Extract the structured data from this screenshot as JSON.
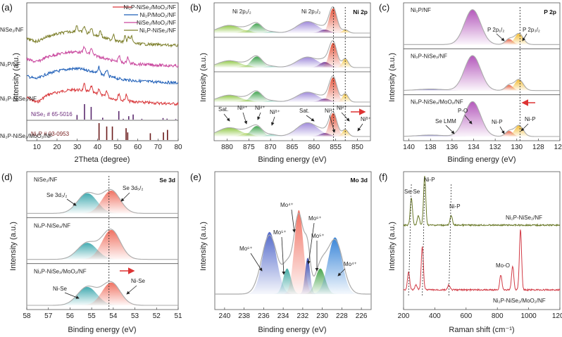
{
  "chart_data": [
    {
      "panel": "(a)",
      "type": "line",
      "title": "",
      "xlabel": "2Theta (degree)",
      "ylabel": "Intensity (a.u.)",
      "xlim": [
        5,
        80
      ],
      "xticks": [
        10,
        20,
        30,
        40,
        50,
        60,
        70,
        80
      ],
      "legend_position": "top-right",
      "series": [
        {
          "name": "Ni2P-NiSe2/MoO2/NF",
          "color": "#d9393c",
          "offset": 0,
          "peaks": [
            33.5,
            37,
            40.8,
            44.6,
            50.7,
            54.3
          ]
        },
        {
          "name": "Ni2P/MoO2/NF",
          "color": "#1f5fb8",
          "offset": 1,
          "peaks": [
            40.8,
            44.6
          ]
        },
        {
          "name": "NiSe2/MoO2/NF",
          "color": "#c9479e",
          "offset": 2,
          "peaks": [
            33.5,
            37,
            50.7,
            55
          ]
        },
        {
          "name": "Ni2P-NiSe2/NF",
          "color": "#7d7f2b",
          "offset": 3,
          "peaks": [
            29.8,
            33.5,
            37,
            41.5,
            48,
            53.7,
            55.5,
            57
          ]
        }
      ],
      "legend": [
        {
          "label": "Ni2P-NiSe2/MoO2/NF",
          "color": "#d9393c"
        },
        {
          "label": "Ni2P/MoO2/NF",
          "color": "#1f5fb8"
        },
        {
          "label": "NiSe2/MoO2/NF",
          "color": "#c9479e"
        },
        {
          "label": "Ni2P-NiSe2/NF",
          "color": "#7d7f2b"
        }
      ],
      "references": [
        {
          "label": "NiSe2 # 65-5016",
          "color": "#5b2a6e",
          "lines": [
            [
              29.9,
              0.3
            ],
            [
              33.6,
              1.0
            ],
            [
              36.9,
              0.82
            ],
            [
              42.6,
              0.12
            ],
            [
              50.6,
              0.55
            ],
            [
              52.8,
              0.05
            ],
            [
              55.5,
              0.22
            ],
            [
              57.7,
              0.33
            ],
            [
              62,
              0.05
            ],
            [
              72.5,
              0.1
            ],
            [
              74.5,
              0.06
            ],
            [
              78.8,
              0.04
            ]
          ]
        },
        {
          "label": "Ni2P # 03-0953",
          "color": "#6b1b1b",
          "lines": [
            [
              40.8,
              1.0
            ],
            [
              44.6,
              0.8
            ],
            [
              47.4,
              0.8
            ],
            [
              54.2,
              0.7
            ],
            [
              55,
              0.45
            ],
            [
              66.2,
              0.4
            ],
            [
              72.7,
              0.45
            ],
            [
              74.7,
              0.6
            ]
          ]
        }
      ]
    },
    {
      "panel": "(b)",
      "type": "area",
      "title": "Ni 2p",
      "xlabel": "Binding energy (eV)",
      "ylabel": "Intensity (a.u.)",
      "xlim": [
        883,
        847
      ],
      "xticks": [
        880,
        875,
        870,
        865,
        860,
        855,
        850
      ],
      "dashed_lines": [
        855.5,
        852.8
      ],
      "samples": [
        "NiSe2/NF",
        "Ni2P/NF",
        "Ni2P-NiSe2/NF",
        "Ni2P-NiSe2/MoO2/NF"
      ],
      "component_peaks": [
        {
          "label": "Sat.",
          "center": 879.5,
          "color": "#8cc63f"
        },
        {
          "label": "Ni3+",
          "center": 875.5,
          "color": "#b5d56a"
        },
        {
          "label": "Ni2+",
          "center": 873.2,
          "color": "#3ca04a"
        },
        {
          "label": "Niδ+",
          "center": 869.8,
          "color": "#7fc7b6"
        },
        {
          "label": "Sat.",
          "center": 861.5,
          "color": "#9a84d8"
        },
        {
          "label": "Ni3+",
          "center": 857.5,
          "color": "#6b2a8c"
        },
        {
          "label": "Ni2+",
          "center": 855.6,
          "color": "#e2492f"
        },
        {
          "label": "Niδ+",
          "center": 852.8,
          "color": "#f3c33a"
        }
      ],
      "annotations": [
        "Ni 2p1/2",
        "Ni 2p3/2"
      ],
      "shift_arrow": "right"
    },
    {
      "panel": "(c)",
      "type": "area",
      "title": "P 2p",
      "xlabel": "Binding energy (eV)",
      "ylabel": "Intensity (a.u.)",
      "xlim": [
        140.5,
        126
      ],
      "xticks": [
        140,
        138,
        136,
        134,
        132,
        130,
        128,
        126
      ],
      "dashed_lines": [
        129.7
      ],
      "samples": [
        "Ni2P/NF",
        "Ni2P-NiSe2/NF",
        "Ni2P-NiSe2/MoO2/NF"
      ],
      "component_peaks": [
        {
          "label": "P-O",
          "center": 134.2,
          "color": "#b050b8"
        },
        {
          "label": "P 2p1/2 / Ni-P",
          "center": 130.7,
          "color": "#e45b3a"
        },
        {
          "label": "P 2p3/2 / Ni-P",
          "center": 129.8,
          "color": "#f1b92c"
        },
        {
          "label": "Se LMM",
          "center": 138.2,
          "color": "#5b56b8"
        }
      ],
      "shift_arrow": "left"
    },
    {
      "panel": "(d)",
      "type": "area",
      "title": "Se 3d",
      "xlabel": "Binding energy (eV)",
      "ylabel": "Intensity (a.u.)",
      "xlim": [
        58,
        51
      ],
      "xticks": [
        58,
        57,
        56,
        55,
        54,
        53,
        52,
        51
      ],
      "dashed_lines": [
        54.2
      ],
      "samples": [
        "NiSe2/NF",
        "Ni2P-NiSe2/NF",
        "Ni2P-NiSe2/MoO2/NF"
      ],
      "component_peaks": [
        {
          "label": "Se 3d3/2 / Ni-Se",
          "center": 55.2,
          "color": "#3aa7ad"
        },
        {
          "label": "Se 3d5/2 / Ni-Se",
          "center": 54.1,
          "color": "#ef6b5a"
        }
      ],
      "shift_arrow": "right"
    },
    {
      "panel": "(e)",
      "type": "area",
      "title": "Mo 3d",
      "xlabel": "Binding energy (eV)",
      "ylabel": "Intensity (a.u.)",
      "xlim": [
        241,
        225
      ],
      "xticks": [
        240,
        238,
        236,
        234,
        232,
        230,
        228,
        226
      ],
      "component_peaks": [
        {
          "label": "Mo6+",
          "center": 235.4,
          "height": 0.68,
          "color": "#4a62c8"
        },
        {
          "label": "Mo5+",
          "center": 233.6,
          "height": 0.28,
          "color": "#3aa7a0"
        },
        {
          "label": "Mo4+",
          "center": 232.4,
          "height": 0.92,
          "color": "#f06a5a"
        },
        {
          "label": "Mo6+",
          "center": 231.5,
          "height": 0.4,
          "color": "#2639a8"
        },
        {
          "label": "Mo5+",
          "center": 230.2,
          "height": 0.28,
          "color": "#3fa044"
        },
        {
          "label": "Mo4+",
          "center": 228.7,
          "height": 0.62,
          "color": "#2f7fd6"
        }
      ]
    },
    {
      "panel": "(f)",
      "type": "line",
      "xlabel": "Raman shift (cm-1)",
      "ylabel": "Intensity (a.u.)",
      "xlim": [
        200,
        1200
      ],
      "xticks": [
        200,
        400,
        600,
        800,
        1000,
        1200
      ],
      "series": [
        {
          "name": "Ni2P-NiSe2/NF",
          "color": "#6b7a2a",
          "peaks": [
            [
              250,
              0.55
            ],
            [
              295,
              0.2
            ],
            [
              335,
              1.0
            ],
            [
              505,
              0.2
            ]
          ]
        },
        {
          "name": "Ni2P-NiSe2/MoO2/NF",
          "color": "#d23b46",
          "peaks": [
            [
              232,
              0.3
            ],
            [
              280,
              0.08
            ],
            [
              320,
              0.72
            ],
            [
              490,
              0.08
            ],
            [
              822,
              0.25
            ],
            [
              898,
              0.4
            ],
            [
              948,
              1.0
            ]
          ]
        }
      ],
      "annotations": [
        "Se-Se",
        "Ni-P",
        "Ni-P",
        "Mo-O"
      ]
    }
  ],
  "text": {
    "a": {
      "panel": "(a)",
      "ylabel": "Intensity (a.u.)",
      "xlabel": "2Theta (degree)",
      "ref1": "NiSe₂ # 65-5016",
      "ref2": "Ni₂P # 03-0953",
      "legend": [
        "Ni₂P-NiSe₂/MoO₂/NF",
        "Ni₂P/MoO₂/NF",
        "NiSe₂/MoO₂/NF",
        "Ni₂P-NiSe₂/NF"
      ]
    },
    "b": {
      "panel": "(b)",
      "title": "Ni 2p",
      "ylabel": "Intensity (a.u.)",
      "xlabel": "Binding energy (eV)",
      "samples": [
        "NiSe₂/NF",
        "Ni₂P/NF",
        "Ni₂P-NiSe₂/NF",
        "Ni₂P-NiSe₂/MoO₂/NF"
      ],
      "p12": "Ni 2p₁/₂",
      "p32": "Ni 2p₃/₂",
      "labels": [
        "Sat.",
        "Ni³⁺",
        "Ni²⁺",
        "Niᵟ⁺",
        "Sat.",
        "Ni³⁺",
        "Ni²⁺",
        "Niᵟ⁺"
      ]
    },
    "c": {
      "panel": "(c)",
      "title": "P 2p",
      "ylabel": "Intensity (a.u.)",
      "xlabel": "Binding energy (eV)",
      "samples": [
        "Ni₂P/NF",
        "Ni₂P-NiSe₂/NF",
        "Ni₂P-NiSe₂/MoO₂/NF"
      ],
      "p12": "P 2p₁/₂",
      "p32": "P 2p₃/₂",
      "po": "P-O",
      "selmm": "Se LMM",
      "nip1": "Ni-P",
      "nip2": "Ni-P"
    },
    "d": {
      "panel": "(d)",
      "title": "Se 3d",
      "ylabel": "Intensity (a.u.)",
      "xlabel": "Binding energy (eV)",
      "samples": [
        "NiSe₂/NF",
        "Ni₂P-NiSe₂/NF",
        "Ni₂P-NiSe₂/MoO₂/NF"
      ],
      "d32": "Se 3d₃/₂",
      "d52": "Se 3d₅/₂",
      "nise1": "Ni-Se",
      "nise2": "Ni-Se"
    },
    "e": {
      "panel": "(e)",
      "title": "Mo 3d",
      "ylabel": "Intensity (a.u.)",
      "xlabel": "Binding energy (eV)"
    },
    "f": {
      "panel": "(f)",
      "ylabel": "Intensity (a.u.)",
      "xlabel": "Raman shift (cm⁻¹)",
      "sese": "Se-Se",
      "nip1": "Ni-P",
      "nip2": "Ni-P",
      "moo": "Mo-O",
      "s1": "Ni₂P-NiSe₂/NF",
      "s2": "Ni₂P-NiSe₂/MoO₂/NF"
    }
  }
}
